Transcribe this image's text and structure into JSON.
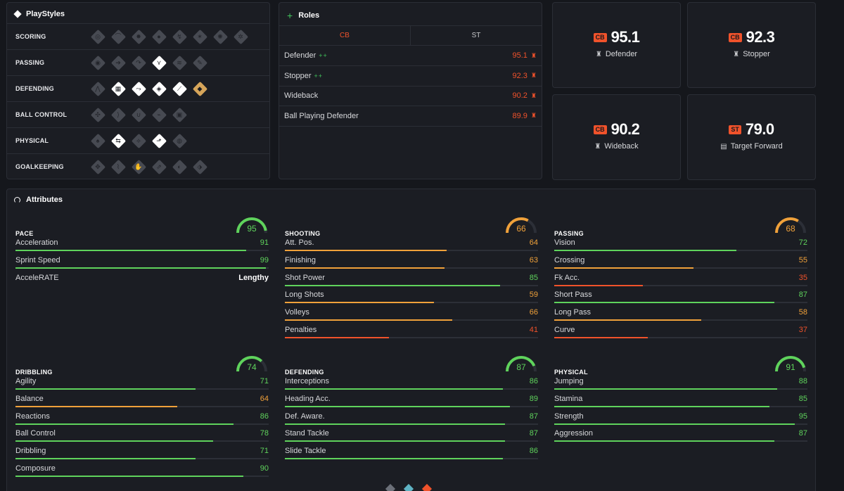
{
  "playstyles": {
    "title": "PlayStyles",
    "rows": [
      {
        "label": "SCORING",
        "icons": [
          {
            "name": "finesse-shot-icon",
            "state": "off",
            "glyph": "◎"
          },
          {
            "name": "chip-shot-icon",
            "state": "off",
            "glyph": "⌒"
          },
          {
            "name": "power-shot-icon",
            "state": "off",
            "glyph": "✸"
          },
          {
            "name": "dead-ball-icon",
            "state": "off",
            "glyph": "●"
          },
          {
            "name": "acrobatic-icon",
            "state": "off",
            "glyph": "↯"
          },
          {
            "name": "power-header-icon",
            "state": "off",
            "glyph": "✶"
          },
          {
            "name": "low-driven-shot-icon",
            "state": "off",
            "glyph": "✺"
          },
          {
            "name": "game-changer-icon",
            "state": "off",
            "glyph": "✲"
          }
        ]
      },
      {
        "label": "PASSING",
        "icons": [
          {
            "name": "incisive-pass-icon",
            "state": "off",
            "glyph": "◉"
          },
          {
            "name": "pinged-pass-icon",
            "state": "off",
            "glyph": "➔"
          },
          {
            "name": "long-ball-pass-icon",
            "state": "off",
            "glyph": "↷"
          },
          {
            "name": "tiki-taka-icon",
            "state": "on",
            "glyph": "⋎"
          },
          {
            "name": "whipped-pass-icon",
            "state": "off",
            "glyph": "≋"
          },
          {
            "name": "inventive-icon",
            "state": "off",
            "glyph": "✎"
          }
        ]
      },
      {
        "label": "DEFENDING",
        "icons": [
          {
            "name": "jockey-icon",
            "state": "off",
            "glyph": "⋀"
          },
          {
            "name": "block-icon",
            "state": "on",
            "glyph": "▦"
          },
          {
            "name": "intercept-icon",
            "state": "on",
            "glyph": "⤳"
          },
          {
            "name": "anticipate-icon",
            "state": "on",
            "glyph": "◈"
          },
          {
            "name": "slide-tackle-icon",
            "state": "on",
            "glyph": "⟋"
          },
          {
            "name": "bruiser-plus-icon",
            "state": "plus",
            "glyph": "◆"
          }
        ]
      },
      {
        "label": "BALL CONTROL",
        "icons": [
          {
            "name": "technical-icon",
            "state": "off",
            "glyph": "✣"
          },
          {
            "name": "rapid-icon",
            "state": "off",
            "glyph": "⟩"
          },
          {
            "name": "first-touch-icon",
            "state": "off",
            "glyph": "∪"
          },
          {
            "name": "flair-icon",
            "state": "off",
            "glyph": "⌁"
          },
          {
            "name": "press-proven-icon",
            "state": "off",
            "glyph": "▣"
          }
        ]
      },
      {
        "label": "PHYSICAL",
        "icons": [
          {
            "name": "relentless-icon",
            "state": "off",
            "glyph": "♠"
          },
          {
            "name": "trickster-icon",
            "state": "on",
            "glyph": "⇆"
          },
          {
            "name": "quick-step-icon",
            "state": "off",
            "glyph": "⟡"
          },
          {
            "name": "aerial-icon",
            "state": "on",
            "glyph": "⬏"
          },
          {
            "name": "long-throw-icon",
            "state": "off",
            "glyph": "◍"
          }
        ]
      },
      {
        "label": "GOALKEEPING",
        "icons": [
          {
            "name": "far-throw-icon",
            "state": "off",
            "glyph": "✥"
          },
          {
            "name": "footwork-icon",
            "state": "off",
            "glyph": "⌇"
          },
          {
            "name": "cross-claimer-icon",
            "state": "off",
            "glyph": "✋"
          },
          {
            "name": "rush-out-icon",
            "state": "off",
            "glyph": "⇗"
          },
          {
            "name": "far-reach-icon",
            "state": "off",
            "glyph": "◐"
          },
          {
            "name": "deflector-icon",
            "state": "off",
            "glyph": "⬗"
          }
        ]
      }
    ]
  },
  "roles": {
    "title": "Roles",
    "tabs": [
      {
        "label": "CB",
        "active": true
      },
      {
        "label": "ST",
        "active": false
      }
    ],
    "rows": [
      {
        "name": "Defender",
        "plus": "++",
        "value": "95.1"
      },
      {
        "name": "Stopper",
        "plus": "++",
        "value": "92.3"
      },
      {
        "name": "Wideback",
        "plus": "",
        "value": "90.2"
      },
      {
        "name": "Ball Playing Defender",
        "plus": "",
        "value": "89.9"
      }
    ]
  },
  "role_cards": [
    {
      "pos": "CB",
      "value": "95.1",
      "name": "Defender",
      "icon": "defender-icon",
      "glyph": "♜"
    },
    {
      "pos": "CB",
      "value": "92.3",
      "name": "Stopper",
      "icon": "stopper-icon",
      "glyph": "♜"
    },
    {
      "pos": "CB",
      "value": "90.2",
      "name": "Wideback",
      "icon": "wideback-icon",
      "glyph": "♜"
    },
    {
      "pos": "ST",
      "value": "79.0",
      "name": "Target Forward",
      "icon": "target-forward-icon",
      "glyph": "▤"
    }
  ],
  "attributes": {
    "title": "Attributes",
    "groups": [
      {
        "name": "PACE",
        "value": 95,
        "color": "green",
        "stats": [
          {
            "name": "Acceleration",
            "value": 91,
            "color": "green"
          },
          {
            "name": "Sprint Speed",
            "value": 99,
            "color": "green"
          },
          {
            "name": "AcceleRATE",
            "text": "Lengthy"
          }
        ]
      },
      {
        "name": "SHOOTING",
        "value": 66,
        "color": "orange",
        "stats": [
          {
            "name": "Att. Pos.",
            "value": 64,
            "color": "orange"
          },
          {
            "name": "Finishing",
            "value": 63,
            "color": "orange"
          },
          {
            "name": "Shot Power",
            "value": 85,
            "color": "green"
          },
          {
            "name": "Long Shots",
            "value": 59,
            "color": "orange"
          },
          {
            "name": "Volleys",
            "value": 66,
            "color": "orange"
          },
          {
            "name": "Penalties",
            "value": 41,
            "color": "red"
          }
        ]
      },
      {
        "name": "PASSING",
        "value": 68,
        "color": "orange",
        "stats": [
          {
            "name": "Vision",
            "value": 72,
            "color": "green"
          },
          {
            "name": "Crossing",
            "value": 55,
            "color": "orange"
          },
          {
            "name": "Fk Acc.",
            "value": 35,
            "color": "red"
          },
          {
            "name": "Short Pass",
            "value": 87,
            "color": "green"
          },
          {
            "name": "Long Pass",
            "value": 58,
            "color": "orange"
          },
          {
            "name": "Curve",
            "value": 37,
            "color": "red"
          }
        ]
      },
      {
        "name": "DRIBBLING",
        "value": 74,
        "color": "green",
        "stats": [
          {
            "name": "Agility",
            "value": 71,
            "color": "green"
          },
          {
            "name": "Balance",
            "value": 64,
            "color": "orange"
          },
          {
            "name": "Reactions",
            "value": 86,
            "color": "green"
          },
          {
            "name": "Ball Control",
            "value": 78,
            "color": "green"
          },
          {
            "name": "Dribbling",
            "value": 71,
            "color": "green"
          },
          {
            "name": "Composure",
            "value": 90,
            "color": "green"
          }
        ]
      },
      {
        "name": "DEFENDING",
        "value": 87,
        "color": "green",
        "stats": [
          {
            "name": "Interceptions",
            "value": 86,
            "color": "green"
          },
          {
            "name": "Heading Acc.",
            "value": 89,
            "color": "green"
          },
          {
            "name": "Def. Aware.",
            "value": 87,
            "color": "green"
          },
          {
            "name": "Stand Tackle",
            "value": 87,
            "color": "green"
          },
          {
            "name": "Slide Tackle",
            "value": 86,
            "color": "green"
          }
        ]
      },
      {
        "name": "PHYSICAL",
        "value": 91,
        "color": "green",
        "stats": [
          {
            "name": "Jumping",
            "value": 88,
            "color": "green"
          },
          {
            "name": "Stamina",
            "value": 85,
            "color": "green"
          },
          {
            "name": "Strength",
            "value": 95,
            "color": "green"
          },
          {
            "name": "Aggression",
            "value": 87,
            "color": "green"
          }
        ]
      }
    ]
  },
  "colors": {
    "green": "#5fd35c",
    "orange": "#f0a13a",
    "red": "#f0522b",
    "track": "#2c2f37"
  }
}
